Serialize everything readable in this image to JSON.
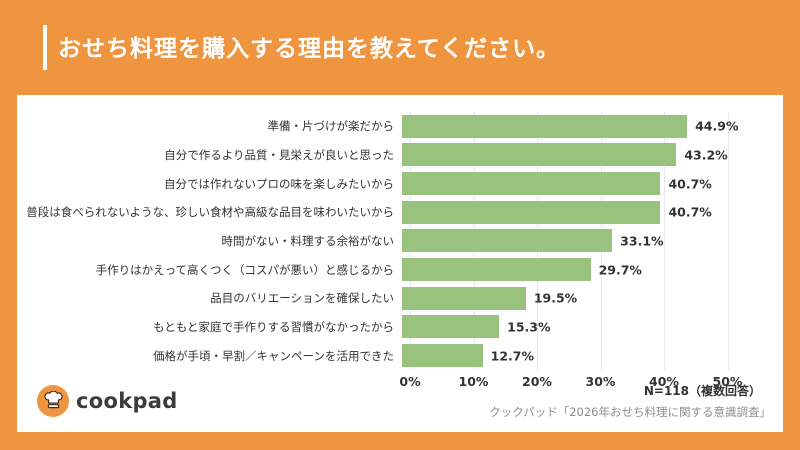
{
  "header": {
    "title": "おせち料理を購入する理由を教えてください。"
  },
  "chart_data": {
    "type": "bar",
    "orientation": "horizontal",
    "title": "おせち料理を購入する理由を教えてください。",
    "categories": [
      "準備・片づけが楽だから",
      "自分で作るより品質・見栄えが良いと思った",
      "自分では作れないプロの味を楽しみたいから",
      "普段は食べられないような、珍しい食材や高級な品目を味わいたいから",
      "時間がない・料理する余裕がない",
      "手作りはかえって高くつく（コスパが悪い）と感じるから",
      "品目のバリエーションを確保したい",
      "もともと家庭で手作りする習慣がなかったから",
      "価格が手頃・早割／キャンペーンを活用できた"
    ],
    "values": [
      44.9,
      43.2,
      40.7,
      40.7,
      33.1,
      29.7,
      19.5,
      15.3,
      12.7
    ],
    "value_labels": [
      "44.9%",
      "43.2%",
      "40.7%",
      "40.7%",
      "33.1%",
      "29.7%",
      "19.5%",
      "15.3%",
      "12.7%"
    ],
    "xlabel": "",
    "ylabel": "",
    "xlim": [
      0,
      55
    ],
    "x_ticks": [
      "0%",
      "10%",
      "20%",
      "30%",
      "40%",
      "50%"
    ],
    "grid": true,
    "legend": false,
    "bar_color": "#9ac27f"
  },
  "footer": {
    "logo_text": "cookpad",
    "sample_note": "N=118（複数回答）",
    "source": "クックパッド「2026年おせち料理に関する意識調査」"
  },
  "colors": {
    "background": "#f0953f",
    "card": "#ffffff",
    "bar": "#9ac27f",
    "title_text": "#ffffff",
    "label_text": "#333333",
    "source_text": "#8e8e8e",
    "gridline": "#e8e8e8"
  }
}
